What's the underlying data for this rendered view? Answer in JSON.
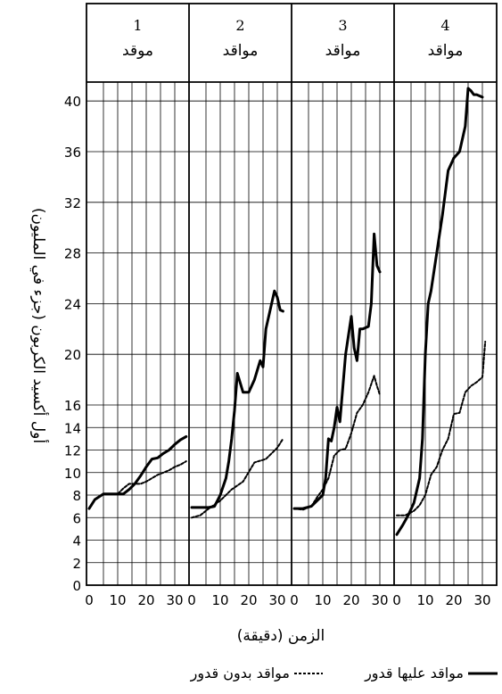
{
  "chart_data": {
    "type": "line",
    "ylabel": "أول أكسيد الكربون (جزء في المليون)",
    "xlabel": "الزمن (دقيقة)",
    "y_ticks": [
      "0",
      "2",
      "4",
      "6",
      "8",
      "10",
      "12",
      "14",
      "16",
      "20",
      "24",
      "28",
      "32",
      "36",
      "40"
    ],
    "x_ticks": [
      "0",
      "10",
      "20",
      "30"
    ],
    "grid": true,
    "legend_position": "bottom",
    "legend": {
      "with_pot": "مواقد عليها قدور",
      "without_pot": "مواقد بدون قدور"
    },
    "panels": [
      {
        "number": "1",
        "title": "موقد",
        "series": [
          {
            "key": "with_pot",
            "style": "solid",
            "x": [
              0,
              2,
              5,
              8,
              10,
              12,
              14,
              16,
              18,
              20,
              22,
              24,
              26,
              28,
              30,
              32,
              34
            ],
            "y": [
              6.8,
              7.6,
              8.1,
              8.1,
              8.1,
              8.1,
              8.5,
              9,
              9.7,
              10.5,
              11.2,
              11.3,
              11.7,
              12,
              12.5,
              12.9,
              13.2
            ]
          },
          {
            "key": "without_pot",
            "style": "dashed",
            "x": [
              0,
              2,
              5,
              8,
              10,
              12,
              14,
              16,
              18,
              20,
              22,
              24,
              26,
              28,
              30,
              32,
              34
            ],
            "y": [
              6.8,
              7.6,
              8.1,
              8.1,
              8.1,
              8.6,
              9,
              9,
              9,
              9.2,
              9.5,
              9.8,
              10,
              10.2,
              10.5,
              10.7,
              11
            ]
          }
        ]
      },
      {
        "number": "2",
        "title": "مواقد",
        "series": [
          {
            "key": "with_pot",
            "style": "solid",
            "x": [
              0,
              3,
              6,
              8,
              10,
              12,
              13,
              14,
              15,
              16,
              18,
              20,
              22,
              24,
              25,
              26,
              28,
              29,
              30,
              31,
              32
            ],
            "y": [
              6.9,
              6.9,
              6.9,
              7,
              8,
              9.5,
              11,
              13,
              15.5,
              18.5,
              17,
              17,
              18,
              19.5,
              19,
              22,
              24,
              25,
              24.5,
              23.5,
              23.4
            ]
          },
          {
            "key": "without_pot",
            "style": "dashed",
            "x": [
              0,
              3,
              6,
              10,
              14,
              18,
              22,
              26,
              30,
              32
            ],
            "y": [
              6,
              6.2,
              6.8,
              7.5,
              8.5,
              9.2,
              10.9,
              11.2,
              12.2,
              13
            ]
          }
        ]
      },
      {
        "number": "3",
        "title": "مواقد",
        "series": [
          {
            "key": "with_pot",
            "style": "solid",
            "x": [
              0,
              3,
              6,
              8,
              10,
              11,
              12,
              13,
              14,
              15,
              16,
              18,
              20,
              21,
              22,
              23,
              24,
              26,
              27,
              28,
              29,
              30
            ],
            "y": [
              6.8,
              6.8,
              7,
              7.5,
              8,
              9.5,
              13,
              12.8,
              14,
              15.8,
              14.5,
              20,
              23,
              20.5,
              19.5,
              22,
              22,
              22.2,
              24,
              29.5,
              27,
              26.5
            ]
          },
          {
            "key": "without_pot",
            "style": "dashed",
            "x": [
              0,
              3,
              6,
              8,
              10,
              12,
              14,
              16,
              18,
              20,
              22,
              24,
              26,
              28,
              29,
              30
            ],
            "y": [
              6.8,
              6.7,
              7,
              7.8,
              8.5,
              9.5,
              11.5,
              12,
              12.1,
              13.5,
              15.3,
              16,
              17,
              18.3,
              17.5,
              16.8
            ]
          }
        ]
      },
      {
        "number": "4",
        "title": "مواقد",
        "series": [
          {
            "key": "with_pot",
            "style": "solid",
            "x": [
              0,
              2,
              4,
              6,
              8,
              9,
              10,
              11,
              12,
              14,
              16,
              18,
              20,
              22,
              24,
              25,
              26,
              27,
              28,
              30
            ],
            "y": [
              4.5,
              5.3,
              6.2,
              7.3,
              9.5,
              13,
              20,
              24,
              25,
              28,
              31,
              34.5,
              35.5,
              36,
              38,
              41,
              40.8,
              40.5,
              40.5,
              40.3
            ]
          },
          {
            "key": "without_pot",
            "style": "dashed",
            "x": [
              0,
              3,
              6,
              8,
              10,
              12,
              14,
              16,
              18,
              20,
              22,
              24,
              26,
              28,
              30,
              31
            ],
            "y": [
              6.2,
              6.2,
              6.6,
              7.1,
              8,
              9.8,
              10.5,
              12,
              13,
              15.2,
              15.3,
              17,
              17.5,
              17.8,
              18.2,
              21
            ]
          }
        ]
      }
    ]
  }
}
